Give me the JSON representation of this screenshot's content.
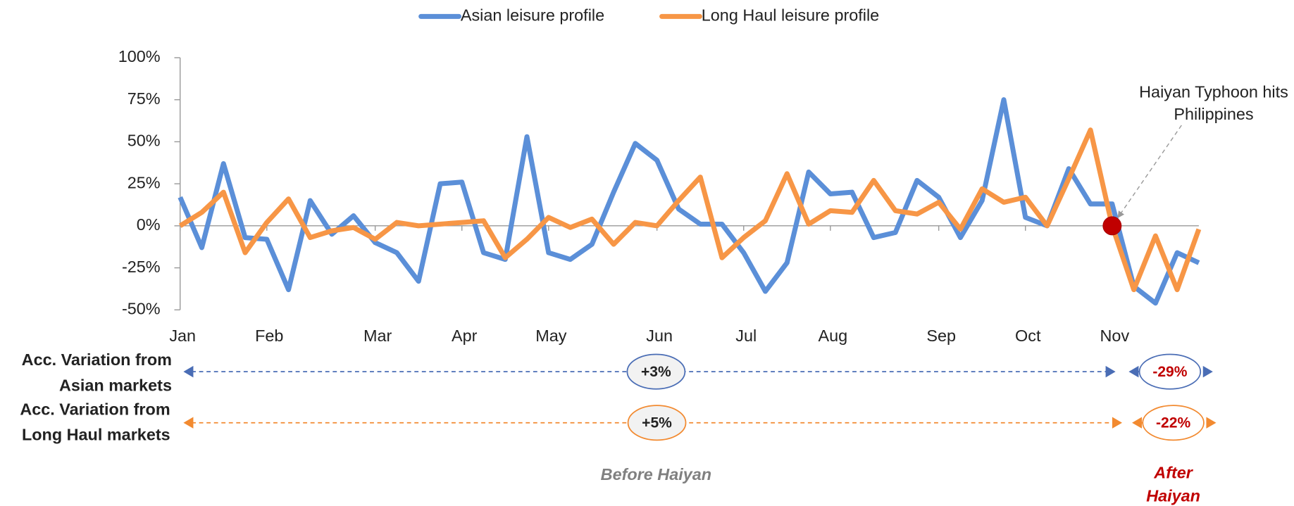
{
  "chart_data": {
    "type": "line",
    "categories": [
      "Jan",
      null,
      null,
      null,
      "Feb",
      null,
      null,
      null,
      null,
      "Mar",
      null,
      null,
      null,
      "Apr",
      null,
      null,
      null,
      "May",
      null,
      null,
      null,
      null,
      "Jun",
      null,
      null,
      null,
      "Jul",
      null,
      null,
      null,
      "Aug",
      null,
      null,
      null,
      null,
      "Sep",
      null,
      null,
      null,
      "Oct",
      null,
      null,
      null,
      "Nov",
      null,
      null,
      null,
      null
    ],
    "series": [
      {
        "name": "Asian leisure profile",
        "color": "#5b8fd8",
        "values": [
          17,
          -13,
          37,
          -7,
          -8,
          -38,
          15,
          -5,
          6,
          -10,
          -16,
          -33,
          25,
          26,
          -16,
          -20,
          53,
          -16,
          -20,
          -11,
          20,
          49,
          39,
          10,
          1,
          1,
          -16,
          -39,
          -22,
          32,
          19,
          20,
          -7,
          -4,
          27,
          17,
          -7,
          15,
          75,
          5,
          0,
          34,
          13,
          13,
          -36,
          -46,
          -16,
          -22
        ]
      },
      {
        "name": "Long Haul leisure profile",
        "color": "#f79646",
        "values": [
          0,
          8,
          20,
          -16,
          2,
          16,
          -7,
          -3,
          -1,
          -8,
          2,
          0,
          1,
          2,
          3,
          -19,
          -8,
          5,
          -1,
          4,
          -11,
          2,
          0,
          15,
          29,
          -19,
          -7,
          3,
          31,
          1,
          9,
          8,
          27,
          9,
          7,
          14,
          -2,
          22,
          14,
          17,
          0,
          28,
          57,
          0,
          -38,
          -6,
          -38,
          -2
        ]
      }
    ],
    "ylim": [
      -50,
      100
    ],
    "yticks": [
      {
        "value": -50,
        "label": "-50%"
      },
      {
        "value": -25,
        "label": "-25%"
      },
      {
        "value": 0,
        "label": "0%"
      },
      {
        "value": 25,
        "label": "25%"
      },
      {
        "value": 50,
        "label": "50%"
      },
      {
        "value": 75,
        "label": "75%"
      },
      {
        "value": 100,
        "label": "100%"
      }
    ],
    "grid": false,
    "legend": "top",
    "annotation": {
      "text": [
        "Haiyan Typhoon hits",
        "Philippines"
      ],
      "index": 43,
      "value": 0,
      "color": "#c00000"
    },
    "accumulated": [
      {
        "label": [
          "Acc. Variation from",
          "Asian markets"
        ],
        "values": [
          3,
          -29
        ],
        "value_labels": [
          "+3%",
          "-29%"
        ],
        "color": "#4a6db5"
      },
      {
        "label": [
          "Acc. Variation from",
          "Long Haul markets"
        ],
        "values": [
          5,
          -22
        ],
        "value_labels": [
          "+5%",
          "-22%"
        ],
        "color": "#f28a30"
      }
    ],
    "periods": [
      [
        "Before Haiyan"
      ],
      [
        "After",
        "Haiyan"
      ]
    ]
  }
}
